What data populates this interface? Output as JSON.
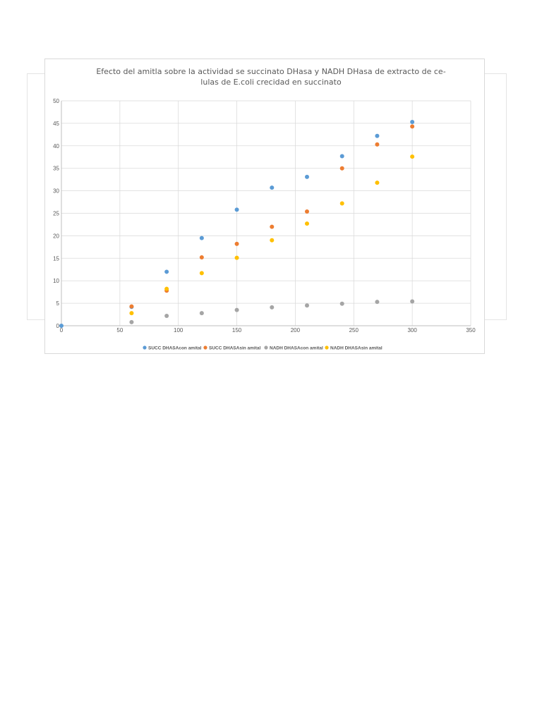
{
  "chart_data": {
    "type": "scatter",
    "title_line1": "Efecto del amitla sobre la actividad se succinato DHasa y NADH DHasa de extracto de ce-",
    "title_line2": "lulas de E.coli crecidad en succinato",
    "xlabel": "",
    "ylabel": "",
    "xlim": [
      0,
      350
    ],
    "ylim": [
      0,
      50
    ],
    "x_ticks": [
      0,
      50,
      100,
      150,
      200,
      250,
      300,
      350
    ],
    "y_ticks": [
      0,
      5,
      10,
      15,
      20,
      25,
      30,
      35,
      40,
      45,
      50
    ],
    "grid": true,
    "legend_position": "bottom",
    "series": [
      {
        "name": "SUCC DHASAcon amital",
        "color": "#5b9bd5",
        "points": [
          [
            0,
            0
          ],
          [
            60,
            4.2
          ],
          [
            90,
            12
          ],
          [
            120,
            19.5
          ],
          [
            150,
            25.8
          ],
          [
            180,
            30.7
          ],
          [
            210,
            33.1
          ],
          [
            240,
            37.7
          ],
          [
            270,
            42.2
          ],
          [
            300,
            45.3
          ]
        ]
      },
      {
        "name": "SUCC DHASAsin amital",
        "color": "#ed7d31",
        "points": [
          [
            60,
            4.3
          ],
          [
            90,
            7.8
          ],
          [
            120,
            15.2
          ],
          [
            150,
            18.2
          ],
          [
            180,
            22
          ],
          [
            210,
            25.4
          ],
          [
            240,
            35
          ],
          [
            270,
            40.3
          ],
          [
            300,
            44.3
          ]
        ]
      },
      {
        "name": "NADH DHASAcon amital",
        "color": "#a5a5a5",
        "points": [
          [
            60,
            0.8
          ],
          [
            90,
            2.2
          ],
          [
            120,
            2.8
          ],
          [
            150,
            3.5
          ],
          [
            180,
            4.1
          ],
          [
            210,
            4.5
          ],
          [
            240,
            4.9
          ],
          [
            270,
            5.3
          ],
          [
            300,
            5.4
          ]
        ]
      },
      {
        "name": "NADH DHASAsin amital",
        "color": "#ffc000",
        "points": [
          [
            60,
            2.8
          ],
          [
            90,
            8.2
          ],
          [
            120,
            11.7
          ],
          [
            150,
            15.1
          ],
          [
            180,
            19
          ],
          [
            210,
            22.7
          ],
          [
            240,
            27.2
          ],
          [
            270,
            31.8
          ],
          [
            300,
            37.6
          ]
        ]
      }
    ]
  }
}
